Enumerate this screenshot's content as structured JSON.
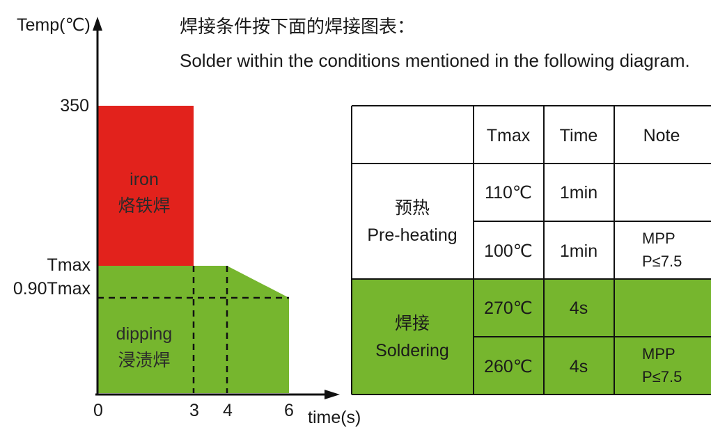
{
  "header": {
    "line_cn": "焊接条件按下面的焊接图表：",
    "line_en": "Solder within the conditions mentioned in the following diagram."
  },
  "axes": {
    "y_label": "Temp(℃)",
    "x_label": "time(s)",
    "y_ticks": [
      "350",
      "Tmax",
      "0.90Tmax"
    ],
    "x_ticks": [
      "0",
      "3",
      "4",
      "6"
    ]
  },
  "regions": {
    "iron": {
      "label_en": "iron",
      "label_cn": "烙铁焊",
      "color": "#e2221c"
    },
    "dipping": {
      "label_en": "dipping",
      "label_cn": "浸渍焊",
      "color": "#76b62e"
    }
  },
  "table": {
    "headers": [
      "",
      "Tmax",
      "Time",
      "Note"
    ],
    "groups": [
      {
        "label_cn": "预热",
        "label_en": "Pre-heating",
        "fill": "#ffffff",
        "rows": [
          {
            "tmax": "110℃",
            "time": "1min",
            "note_1": "",
            "note_2": ""
          },
          {
            "tmax": "100℃",
            "time": "1min",
            "note_1": "MPP",
            "note_2": "P≤7.5"
          }
        ]
      },
      {
        "label_cn": "焊接",
        "label_en": "Soldering",
        "fill": "#76b62e",
        "rows": [
          {
            "tmax": "270℃",
            "time": "4s",
            "note_1": "",
            "note_2": ""
          },
          {
            "tmax": "260℃",
            "time": "4s",
            "note_1": "MPP",
            "note_2": "P≤7.5"
          }
        ]
      }
    ]
  }
}
